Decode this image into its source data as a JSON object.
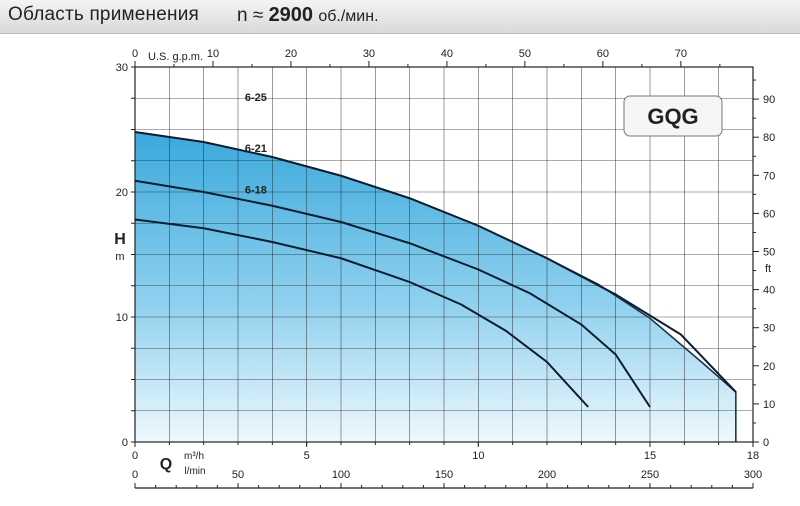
{
  "header": {
    "title": "Область применения",
    "speed_symbol": "n ≈",
    "speed_value": "2900",
    "speed_unit": "об./мин."
  },
  "chart_data": {
    "type": "line",
    "model_label": "GQG",
    "left_axis": {
      "label": "H",
      "unit": "m",
      "ticks": [
        0,
        10,
        20,
        30
      ],
      "range": [
        0,
        30
      ]
    },
    "right_axis": {
      "unit": "ft",
      "ticks": [
        0,
        10,
        20,
        30,
        40,
        50,
        60,
        70,
        80,
        90
      ]
    },
    "top_axis": {
      "unit": "U.S. g.p.m.",
      "ticks": [
        0,
        10,
        20,
        30,
        40,
        50,
        60,
        70
      ]
    },
    "bottom_axis_m3h": {
      "label": "Q",
      "unit": "m³/h",
      "ticks": [
        0,
        5,
        10,
        15,
        18
      ],
      "range": [
        0,
        18
      ]
    },
    "bottom_axis_lmin": {
      "unit": "l/min",
      "ticks": [
        0,
        50,
        100,
        150,
        200,
        250,
        300
      ]
    },
    "grid": true,
    "envelope": {
      "x": [
        0,
        2,
        4,
        6,
        8,
        10,
        12,
        13.5,
        15,
        16.5,
        17.5
      ],
      "y": [
        24.8,
        24.0,
        22.8,
        21.3,
        19.5,
        17.3,
        14.7,
        12.6,
        9.9,
        6.4,
        4.0
      ]
    },
    "series": [
      {
        "name": "6-25",
        "x": [
          0,
          2,
          4,
          6,
          8,
          10,
          12,
          14,
          15.9,
          17.5
        ],
        "y": [
          24.8,
          24.0,
          22.8,
          21.3,
          19.5,
          17.3,
          14.7,
          11.8,
          8.6,
          4.0
        ]
      },
      {
        "name": "6-21",
        "x": [
          0,
          2,
          4,
          6,
          8,
          10,
          11.5,
          13,
          14,
          15
        ],
        "y": [
          20.9,
          20.0,
          18.9,
          17.6,
          15.9,
          13.8,
          11.9,
          9.4,
          7.0,
          2.8
        ]
      },
      {
        "name": "6-18",
        "x": [
          0,
          2,
          4,
          6,
          8,
          9.5,
          10.8,
          12,
          13.2
        ],
        "y": [
          17.8,
          17.1,
          16.0,
          14.7,
          12.8,
          11.0,
          8.9,
          6.4,
          2.8
        ]
      }
    ]
  }
}
